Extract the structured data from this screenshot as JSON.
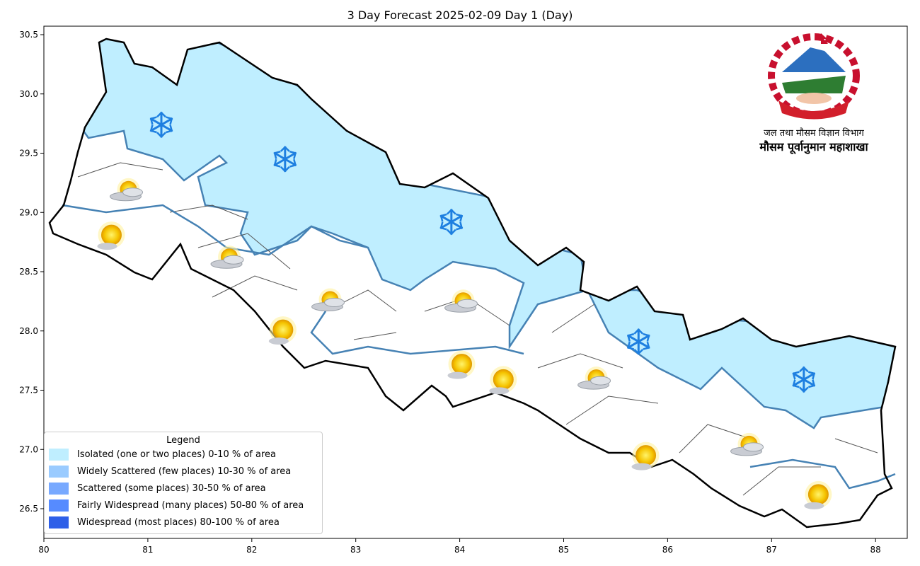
{
  "title": "3 Day Forecast 2025-02-09 Day 1 (Day)",
  "axes": {
    "x_ticks": [
      "80",
      "81",
      "82",
      "83",
      "84",
      "85",
      "86",
      "87",
      "88"
    ],
    "y_ticks": [
      "26.5",
      "27.0",
      "27.5",
      "28.0",
      "28.5",
      "29.0",
      "29.5",
      "30.0",
      "30.5"
    ],
    "xlim": [
      79.98,
      88.3
    ],
    "ylim": [
      26.25,
      30.57
    ]
  },
  "legend": {
    "title": "Legend",
    "items": [
      {
        "label": "Isolated (one or two places)  0-10 % of area",
        "color": "#bfeeff"
      },
      {
        "label": "Widely Scattered (few places) 10-30 % of area",
        "color": "#9acbff"
      },
      {
        "label": "Scattered (some places) 30-50  % of area",
        "color": "#78a9ff"
      },
      {
        "label": "Fairly Widespread (many places) 50-80 % of area",
        "color": "#568bff"
      },
      {
        "label": "Widespread (most places) 80-100 % of area",
        "color": "#2e5fe8"
      }
    ]
  },
  "logo": {
    "line1": "जल तथा मौसम विज्ञान विभाग",
    "line2": "मौसम पूर्वानुमान महाशाखा"
  },
  "weather_icons": [
    {
      "type": "snow",
      "lon": 81.13,
      "lat": 29.74
    },
    {
      "type": "snow",
      "lon": 82.32,
      "lat": 29.45
    },
    {
      "type": "snow",
      "lon": 83.92,
      "lat": 28.92
    },
    {
      "type": "snow",
      "lon": 85.72,
      "lat": 27.91
    },
    {
      "type": "snow",
      "lon": 87.31,
      "lat": 27.59
    },
    {
      "type": "partly-cloudy",
      "lon": 80.8,
      "lat": 29.17
    },
    {
      "type": "partly-cloudy",
      "lon": 81.77,
      "lat": 28.6
    },
    {
      "type": "partly-cloudy",
      "lon": 82.74,
      "lat": 28.24
    },
    {
      "type": "partly-cloudy",
      "lon": 84.02,
      "lat": 28.23
    },
    {
      "type": "partly-cloudy",
      "lon": 85.3,
      "lat": 27.58
    },
    {
      "type": "partly-cloudy",
      "lon": 86.77,
      "lat": 27.02
    },
    {
      "type": "sunny",
      "lon": 80.65,
      "lat": 28.81
    },
    {
      "type": "sunny",
      "lon": 82.3,
      "lat": 28.01
    },
    {
      "type": "sunny",
      "lon": 84.02,
      "lat": 27.72
    },
    {
      "type": "sunny",
      "lon": 84.42,
      "lat": 27.59
    },
    {
      "type": "sunny",
      "lon": 85.79,
      "lat": 26.95
    },
    {
      "type": "sunny",
      "lon": 87.45,
      "lat": 26.62
    }
  ]
}
